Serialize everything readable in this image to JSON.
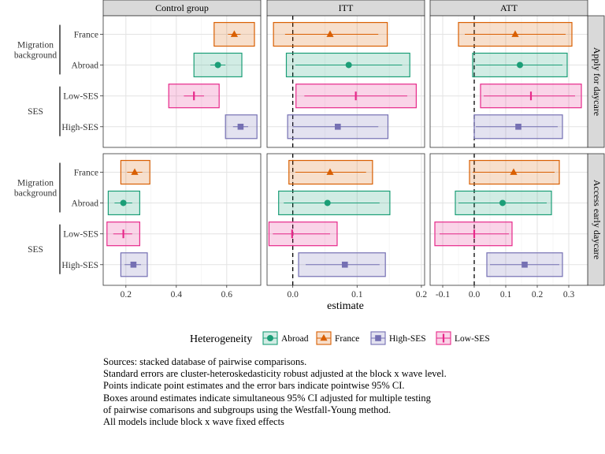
{
  "chart_data": {
    "type": "forest",
    "xlabel": "estimate",
    "legend": {
      "title": "Heterogeneity",
      "position": "bottom",
      "items": [
        {
          "name": "Abroad",
          "color": "#1b9e77",
          "shape": "circle"
        },
        {
          "name": "France",
          "color": "#d95f02",
          "shape": "triangle"
        },
        {
          "name": "High-SES",
          "color": "#7570b3",
          "shape": "square"
        },
        {
          "name": "Low-SES",
          "color": "#e7298a",
          "shape": "cross"
        }
      ]
    },
    "columns": [
      {
        "label": "Control group",
        "xlim": [
          0.11,
          0.735
        ],
        "ticks": [
          0.2,
          0.4,
          0.6
        ],
        "tick_labels": [
          "0.2",
          "0.4",
          "0.6"
        ],
        "zero_line": false
      },
      {
        "label": "ITT",
        "xlim": [
          -0.04,
          0.205
        ],
        "ticks": [
          0.0,
          0.1,
          0.2
        ],
        "tick_labels": [
          "0.0",
          "0.1",
          "0.2"
        ],
        "zero_line": true
      },
      {
        "label": "ATT",
        "xlim": [
          -0.14,
          0.36
        ],
        "ticks": [
          -0.1,
          0.0,
          0.1,
          0.2,
          0.3
        ],
        "tick_labels": [
          "-0.1",
          "0.0",
          "0.1",
          "0.2",
          "0.3"
        ],
        "zero_line": true
      }
    ],
    "rows_facets": [
      {
        "label": "Apply for daycare"
      },
      {
        "label": "Access early daycare"
      }
    ],
    "y_groups": [
      {
        "label_lines": [
          "Migration",
          "background"
        ],
        "categories": [
          "France",
          "Abroad"
        ]
      },
      {
        "label_lines": [
          "SES"
        ],
        "categories": [
          "Low-SES",
          "High-SES"
        ]
      }
    ],
    "panels": [
      {
        "row": 0,
        "col": 0,
        "estimates": [
          {
            "category": "France",
            "est": 0.63,
            "ci": [
              0.605,
              0.655
            ],
            "box": [
              0.55,
              0.71
            ]
          },
          {
            "category": "Abroad",
            "est": 0.565,
            "ci": [
              0.535,
              0.595
            ],
            "box": [
              0.47,
              0.66
            ]
          },
          {
            "category": "Low-SES",
            "est": 0.47,
            "ci": [
              0.43,
              0.51
            ],
            "box": [
              0.37,
              0.57
            ]
          },
          {
            "category": "High-SES",
            "est": 0.655,
            "ci": [
              0.625,
              0.685
            ],
            "box": [
              0.595,
              0.72
            ]
          }
        ]
      },
      {
        "row": 0,
        "col": 1,
        "estimates": [
          {
            "category": "France",
            "est": 0.058,
            "ci": [
              -0.012,
              0.133
            ],
            "box": [
              -0.03,
              0.147
            ]
          },
          {
            "category": "Abroad",
            "est": 0.087,
            "ci": [
              0.004,
              0.17
            ],
            "box": [
              -0.01,
              0.182
            ]
          },
          {
            "category": "Low-SES",
            "est": 0.098,
            "ci": [
              0.018,
              0.178
            ],
            "box": [
              0.005,
              0.192
            ]
          },
          {
            "category": "High-SES",
            "est": 0.07,
            "ci": [
              0.0,
              0.133
            ],
            "box": [
              -0.008,
              0.148
            ]
          }
        ]
      },
      {
        "row": 0,
        "col": 2,
        "estimates": [
          {
            "category": "France",
            "est": 0.13,
            "ci": [
              -0.03,
              0.29
            ],
            "box": [
              -0.05,
              0.31
            ]
          },
          {
            "category": "Abroad",
            "est": 0.145,
            "ci": [
              0.005,
              0.28
            ],
            "box": [
              -0.005,
              0.295
            ]
          },
          {
            "category": "Low-SES",
            "est": 0.18,
            "ci": [
              0.03,
              0.32
            ],
            "box": [
              0.02,
              0.34
            ]
          },
          {
            "category": "High-SES",
            "est": 0.14,
            "ci": [
              0.005,
              0.265
            ],
            "box": [
              0.0,
              0.28
            ]
          }
        ]
      },
      {
        "row": 1,
        "col": 0,
        "estimates": [
          {
            "category": "France",
            "est": 0.235,
            "ci": [
              0.205,
              0.265
            ],
            "box": [
              0.18,
              0.295
            ]
          },
          {
            "category": "Abroad",
            "est": 0.19,
            "ci": [
              0.155,
              0.225
            ],
            "box": [
              0.13,
              0.255
            ]
          },
          {
            "category": "Low-SES",
            "est": 0.19,
            "ci": [
              0.15,
              0.225
            ],
            "box": [
              0.125,
              0.255
            ]
          },
          {
            "category": "High-SES",
            "est": 0.23,
            "ci": [
              0.195,
              0.26
            ],
            "box": [
              0.18,
              0.285
            ]
          }
        ]
      },
      {
        "row": 1,
        "col": 1,
        "estimates": [
          {
            "category": "France",
            "est": 0.058,
            "ci": [
              0.004,
              0.114
            ],
            "box": [
              -0.006,
              0.124
            ]
          },
          {
            "category": "Abroad",
            "est": 0.054,
            "ci": [
              -0.014,
              0.135
            ],
            "box": [
              -0.022,
              0.151
            ]
          },
          {
            "category": "Low-SES",
            "est": -0.001,
            "ci": [
              -0.031,
              0.058
            ],
            "box": [
              -0.037,
              0.069
            ]
          },
          {
            "category": "High-SES",
            "est": 0.081,
            "ci": [
              0.02,
              0.135
            ],
            "box": [
              0.009,
              0.144
            ]
          }
        ]
      },
      {
        "row": 1,
        "col": 2,
        "estimates": [
          {
            "category": "France",
            "est": 0.125,
            "ci": [
              -0.005,
              0.255
            ],
            "box": [
              -0.015,
              0.27
            ]
          },
          {
            "category": "Abroad",
            "est": 0.09,
            "ci": [
              -0.05,
              0.23
            ],
            "box": [
              -0.06,
              0.245
            ]
          },
          {
            "category": "Low-SES",
            "est": 0.0,
            "ci": [
              -0.11,
              0.11
            ],
            "box": [
              -0.125,
              0.12
            ]
          },
          {
            "category": "High-SES",
            "est": 0.16,
            "ci": [
              0.05,
              0.27
            ],
            "box": [
              0.04,
              0.28
            ]
          }
        ]
      }
    ]
  },
  "caption": [
    "Sources: stacked database of pairwise comparisons.",
    "Standard errors are cluster-heteroskedasticity robust adjusted at the block x wave level.",
    "Points indicate point estimates and the error bars indicate pointwise 95% CI.",
    "Boxes around estimates indicate simultaneous 95% CI adjusted for multiple testing",
    "of pairwise comarisons and subgroups using the Westfall-Young method.",
    "All models include block x wave fixed effects"
  ]
}
